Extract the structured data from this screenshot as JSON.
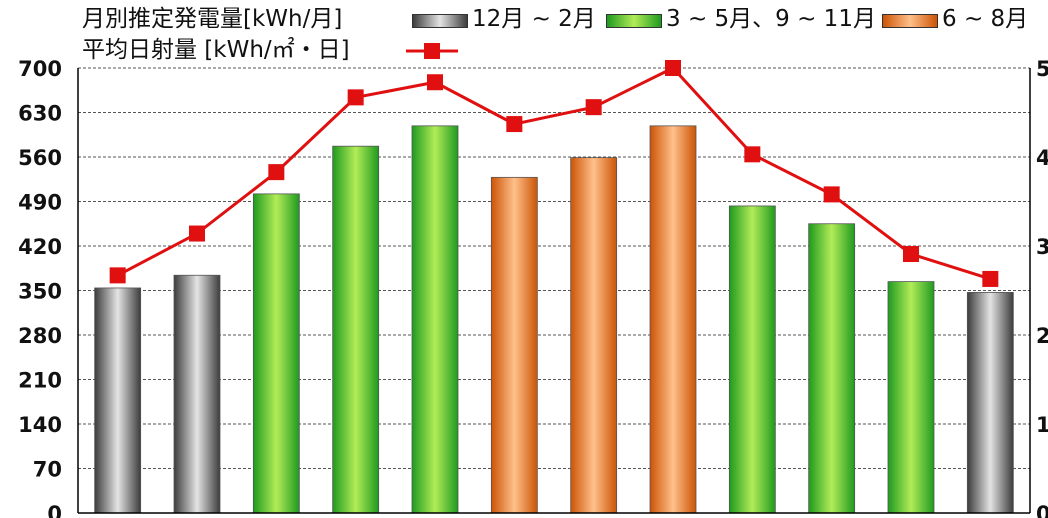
{
  "chart_data": {
    "type": "bar",
    "categories": [
      "",
      "",
      "",
      "",
      "",
      "",
      "",
      "",
      "",
      "",
      "",
      ""
    ],
    "series": [
      {
        "name": "月別推定発電量[kWh/月]",
        "type": "bar",
        "axis": "left",
        "values": [
          354,
          374,
          502,
          577,
          609,
          528,
          559,
          609,
          483,
          455,
          364,
          347
        ],
        "groups": [
          "winter",
          "winter",
          "spring_autumn",
          "spring_autumn",
          "spring_autumn",
          "summer",
          "summer",
          "summer",
          "spring_autumn",
          "spring_autumn",
          "spring_autumn",
          "winter"
        ]
      },
      {
        "name": "平均日射量 [kWh/㎡・日]",
        "type": "line",
        "axis": "right",
        "values": [
          2.67,
          3.14,
          3.83,
          4.67,
          4.84,
          4.37,
          4.56,
          5.0,
          4.03,
          3.58,
          2.91,
          2.63
        ]
      }
    ],
    "y_left": {
      "min": 0,
      "max": 700,
      "ticks": [
        "0",
        "70",
        "140",
        "210",
        "280",
        "350",
        "420",
        "490",
        "560",
        "630",
        "700"
      ]
    },
    "y_right": {
      "min": 0,
      "max": 5,
      "ticks": [
        "0",
        "1",
        "2",
        "3",
        "4",
        "5"
      ]
    },
    "grid": true,
    "legend": {
      "position": "top",
      "bar_title": "月別推定発電量[kWh/月]",
      "line_title": "平均日射量  [kWh/㎡・日]",
      "groups": [
        {
          "key": "winter",
          "label": "12月 ~ 2月"
        },
        {
          "key": "spring_autumn",
          "label": "3 ~ 5月、9 ~ 11月"
        },
        {
          "key": "summer",
          "label": "6 ~ 8月"
        }
      ]
    },
    "colors": {
      "winter": [
        "#3c3c3c",
        "#e4e4e4"
      ],
      "spring_autumn": [
        "#1f9a1f",
        "#b2ec58"
      ],
      "summer": [
        "#cc5406",
        "#ffc08a"
      ],
      "line": "#e01010",
      "grid": "#555555"
    }
  }
}
